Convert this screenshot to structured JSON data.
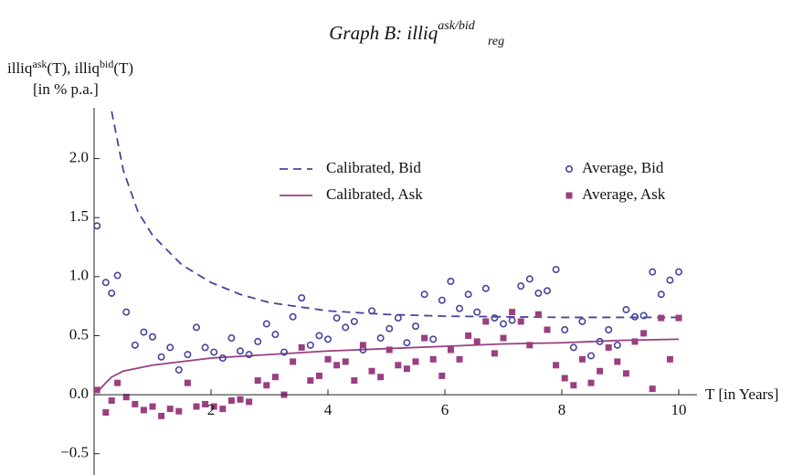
{
  "chart_data": {
    "type": "scatter",
    "title": "Graph B: illiq",
    "title_sub": "reg",
    "title_sup": "ask/bid",
    "y_label_parts": [
      "illiq",
      "ask",
      "(T), illiq",
      "bid",
      "(T)"
    ],
    "y_label_unit": "[in % p.a.]",
    "x_label": "T [in Years]",
    "xlim": [
      0,
      10
    ],
    "xticks": [
      2,
      4,
      6,
      8,
      10
    ],
    "ylim": [
      -0.68,
      2.43
    ],
    "yticks": [
      {
        "value": -0.5,
        "label": "−0.5"
      },
      {
        "value": 0,
        "label": "0.0"
      },
      {
        "value": 0.5,
        "label": "0.5"
      },
      {
        "value": 1,
        "label": "1.0"
      },
      {
        "value": 1.5,
        "label": "1.5"
      },
      {
        "value": 2,
        "label": "2.0"
      }
    ],
    "lines": [
      {
        "name": "Calibrated, Bid",
        "color": "#45459c",
        "dash": true,
        "x": [
          0.3,
          0.5,
          0.75,
          1,
          1.5,
          2,
          2.5,
          3,
          4,
          5,
          6,
          7,
          8,
          9,
          10
        ],
        "values": [
          2.4,
          1.9,
          1.55,
          1.35,
          1.1,
          0.95,
          0.85,
          0.78,
          0.71,
          0.68,
          0.665,
          0.66,
          0.655,
          0.655,
          0.655
        ]
      },
      {
        "name": "Calibrated, Ask",
        "color": "#9a3f80",
        "dash": false,
        "x": [
          0.05,
          0.2,
          0.3,
          0.5,
          1,
          2,
          3,
          4,
          5,
          6,
          7,
          8,
          9,
          10
        ],
        "values": [
          0.02,
          0.1,
          0.15,
          0.2,
          0.25,
          0.31,
          0.34,
          0.37,
          0.39,
          0.41,
          0.43,
          0.44,
          0.46,
          0.47
        ]
      }
    ],
    "x": [
      0.05,
      0.2,
      0.3,
      0.4,
      0.55,
      0.7,
      0.85,
      1.0,
      1.15,
      1.3,
      1.45,
      1.6,
      1.75,
      1.9,
      2.05,
      2.2,
      2.35,
      2.5,
      2.65,
      2.8,
      2.95,
      3.1,
      3.25,
      3.4,
      3.55,
      3.7,
      3.85,
      4.0,
      4.15,
      4.3,
      4.45,
      4.6,
      4.75,
      4.9,
      5.05,
      5.2,
      5.35,
      5.5,
      5.65,
      5.8,
      5.95,
      6.1,
      6.25,
      6.4,
      6.55,
      6.7,
      6.85,
      7.0,
      7.15,
      7.3,
      7.45,
      7.6,
      7.75,
      7.9,
      8.05,
      8.2,
      8.35,
      8.5,
      8.65,
      8.8,
      8.95,
      9.1,
      9.25,
      9.4,
      9.55,
      9.7,
      9.85,
      10.0
    ],
    "series": [
      {
        "name": "Average, Bid",
        "color": "#45459c",
        "marker": "circle",
        "values": [
          1.43,
          0.95,
          0.86,
          1.01,
          0.7,
          0.42,
          0.53,
          0.49,
          0.32,
          0.4,
          0.21,
          0.34,
          0.57,
          0.4,
          0.36,
          0.31,
          0.48,
          0.37,
          0.34,
          0.45,
          0.6,
          0.51,
          0.36,
          0.66,
          0.82,
          0.42,
          0.5,
          0.47,
          0.65,
          0.57,
          0.62,
          0.38,
          0.71,
          0.48,
          0.56,
          0.65,
          0.44,
          0.58,
          0.85,
          0.47,
          0.8,
          0.96,
          0.73,
          0.85,
          0.7,
          0.9,
          0.65,
          0.6,
          0.63,
          0.92,
          0.98,
          0.86,
          0.88,
          1.06,
          0.55,
          0.4,
          0.62,
          0.33,
          0.45,
          0.55,
          0.42,
          0.72,
          0.66,
          0.67,
          1.04,
          0.85,
          0.97,
          1.04
        ]
      },
      {
        "name": "Average, Ask",
        "color": "#9a3f80",
        "marker": "square",
        "values": [
          0.04,
          -0.15,
          -0.05,
          0.1,
          -0.02,
          -0.08,
          -0.13,
          -0.1,
          -0.18,
          -0.12,
          -0.14,
          0.1,
          -0.1,
          -0.08,
          -0.1,
          -0.12,
          -0.05,
          -0.04,
          -0.06,
          0.12,
          0.08,
          0.15,
          0.0,
          0.28,
          0.4,
          0.12,
          0.16,
          0.3,
          0.25,
          0.28,
          0.12,
          0.42,
          0.2,
          0.15,
          0.38,
          0.25,
          0.22,
          0.28,
          0.48,
          0.3,
          0.16,
          0.38,
          0.3,
          0.5,
          0.45,
          0.62,
          0.35,
          0.48,
          0.7,
          0.62,
          0.42,
          0.68,
          0.55,
          0.25,
          0.14,
          0.08,
          0.3,
          0.1,
          0.2,
          0.4,
          0.28,
          0.18,
          0.45,
          0.52,
          0.05,
          0.65,
          0.3,
          0.65
        ]
      }
    ]
  }
}
